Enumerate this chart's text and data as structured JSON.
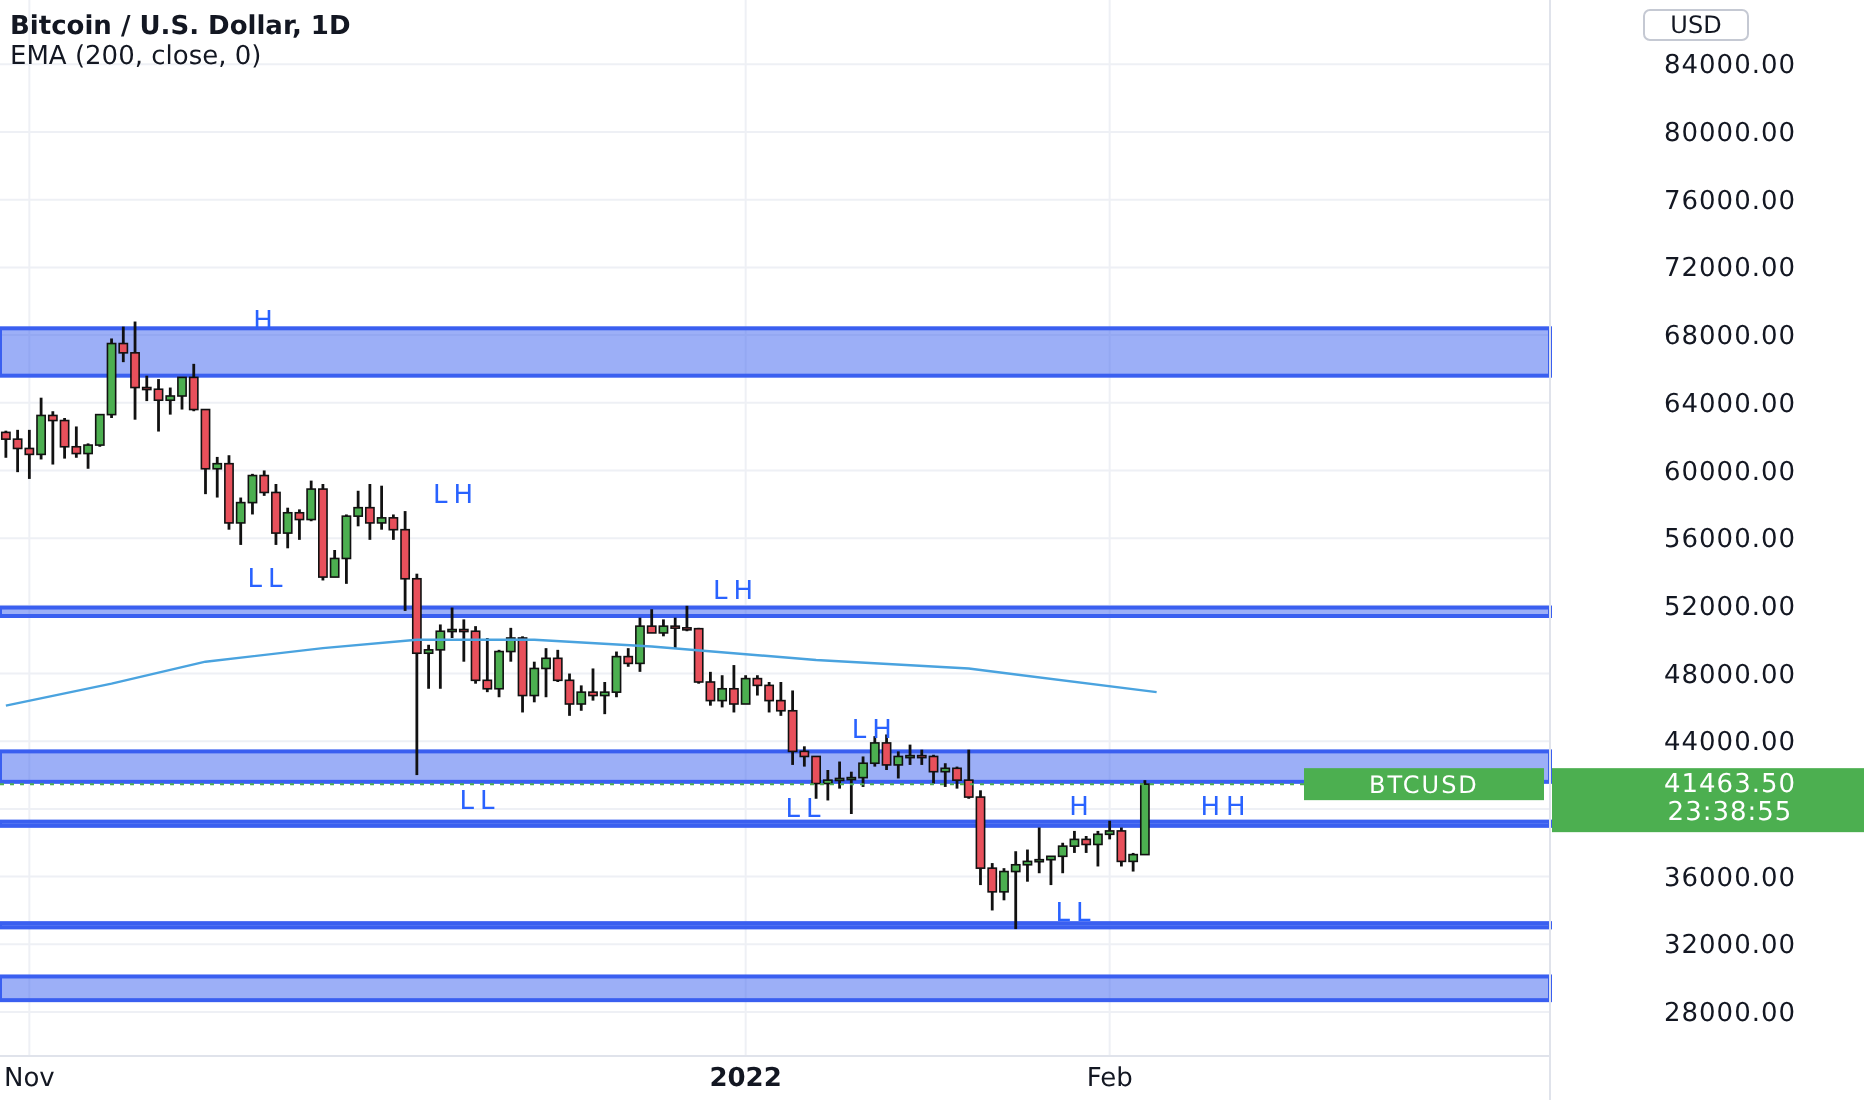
{
  "chart_data": {
    "type": "candlestick",
    "title": "Bitcoin / U.S. Dollar, 1D",
    "subtitle": "EMA (200, close, 0)",
    "xlim": [
      "2021-10-29T12:00",
      "2022-03-10T12:00"
    ],
    "xticks": [
      {
        "value": "2021-11-01",
        "label": "Nov"
      },
      {
        "value": "2022-01-01",
        "label": "2022"
      },
      {
        "value": "2022-02-01",
        "label": "Feb"
      }
    ],
    "ylim": [
      25400,
      87800
    ],
    "yticks": [
      {
        "value": 28000,
        "label": "28000.00"
      },
      {
        "value": 32000,
        "label": "32000.00"
      },
      {
        "value": 36000,
        "label": "36000.00"
      },
      {
        "value": 40000,
        "label": null
      },
      {
        "value": 44000,
        "label": "44000.00"
      },
      {
        "value": 48000,
        "label": "48000.00"
      },
      {
        "value": 52000,
        "label": "52000.00"
      },
      {
        "value": 56000,
        "label": "56000.00"
      },
      {
        "value": 60000,
        "label": "60000.00"
      },
      {
        "value": 64000,
        "label": "64000.00"
      },
      {
        "value": 68000,
        "label": "68000.00"
      },
      {
        "value": 72000,
        "label": "72000.00"
      },
      {
        "value": 76000,
        "label": "76000.00"
      },
      {
        "value": 80000,
        "label": "80000.00"
      },
      {
        "value": 84000,
        "label": "84000.00"
      }
    ],
    "grid": true,
    "series": [
      {
        "color": "#4caf50",
        "x": [
          "2021-11-02",
          "2021-11-06",
          "2021-11-07",
          "2021-11-08",
          "2021-11-13",
          "2021-11-14",
          "2021-11-17",
          "2021-11-19",
          "2021-11-20",
          "2021-11-23",
          "2021-11-25",
          "2021-11-27",
          "2021-11-28",
          "2021-11-29",
          "2021-12-01",
          "2021-12-05",
          "2021-12-06",
          "2021-12-07",
          "2021-12-11",
          "2021-12-12",
          "2021-12-14",
          "2021-12-15",
          "2021-12-18",
          "2021-12-20",
          "2021-12-21",
          "2021-12-23",
          "2021-12-25",
          "2021-12-30",
          "2022-01-01",
          "2022-01-08",
          "2022-01-09",
          "2022-01-10",
          "2022-01-11",
          "2022-01-12",
          "2022-01-14",
          "2022-01-15",
          "2022-01-18",
          "2022-01-23",
          "2022-01-24",
          "2022-01-25",
          "2022-01-26",
          "2022-01-27",
          "2022-01-28",
          "2022-01-29",
          "2022-01-31",
          "2022-02-01",
          "2022-02-03",
          "2022-02-04"
        ],
        "ohlc": [
          [
            60950,
            64300,
            60650,
            63250
          ],
          [
            61000,
            61600,
            60100,
            61500
          ],
          [
            61500,
            63300,
            61400,
            63300
          ],
          [
            63300,
            67800,
            63100,
            67500
          ],
          [
            64150,
            64900,
            63300,
            64400
          ],
          [
            64400,
            65500,
            63600,
            65500
          ],
          [
            60100,
            60800,
            58400,
            60400
          ],
          [
            56900,
            58400,
            55600,
            58100
          ],
          [
            58100,
            59800,
            57400,
            59700
          ],
          [
            56300,
            57800,
            55400,
            57500
          ],
          [
            57100,
            59400,
            57000,
            58900
          ],
          [
            53700,
            55300,
            53700,
            54800
          ],
          [
            54800,
            57400,
            53300,
            57300
          ],
          [
            57300,
            58800,
            56700,
            57800
          ],
          [
            56900,
            59100,
            56500,
            57200
          ],
          [
            49200,
            49700,
            47100,
            49400
          ],
          [
            49400,
            50900,
            47100,
            50500
          ],
          [
            50500,
            51900,
            50100,
            50600
          ],
          [
            47100,
            49400,
            46600,
            49300
          ],
          [
            49300,
            50700,
            48700,
            50100
          ],
          [
            46700,
            48700,
            46300,
            48300
          ],
          [
            48300,
            49500,
            46600,
            48900
          ],
          [
            46200,
            47300,
            45800,
            46900
          ],
          [
            46700,
            47500,
            45600,
            46900
          ],
          [
            46900,
            49300,
            46600,
            49000
          ],
          [
            48600,
            51300,
            48100,
            50800
          ],
          [
            50400,
            51200,
            50200,
            50800
          ],
          [
            46400,
            47900,
            46000,
            47100
          ],
          [
            46200,
            47900,
            46200,
            47700
          ],
          [
            41500,
            42300,
            40500,
            41700
          ],
          [
            41700,
            42800,
            41200,
            41800
          ],
          [
            41800,
            42200,
            39700,
            41850
          ],
          [
            41850,
            43100,
            41300,
            42700
          ],
          [
            42700,
            44300,
            42500,
            43900
          ],
          [
            42600,
            43400,
            41800,
            43100
          ],
          [
            43100,
            43800,
            42600,
            43150
          ],
          [
            42200,
            42700,
            41300,
            42400
          ],
          [
            35100,
            36500,
            34600,
            36300
          ],
          [
            36300,
            37500,
            32900,
            36700
          ],
          [
            36700,
            37600,
            35700,
            36900
          ],
          [
            36900,
            38900,
            36200,
            37000
          ],
          [
            37000,
            37200,
            35500,
            37200
          ],
          [
            37200,
            38000,
            36200,
            37800
          ],
          [
            37800,
            38700,
            37400,
            38200
          ],
          [
            37900,
            38700,
            36600,
            38500
          ],
          [
            38500,
            39300,
            38200,
            38700
          ],
          [
            36900,
            37400,
            36300,
            37300
          ],
          [
            37300,
            41700,
            37300,
            41463.5
          ]
        ]
      },
      {
        "color": "#e8505b",
        "x": [
          "2021-10-30",
          "2021-10-31",
          "2021-11-01",
          "2021-11-03",
          "2021-11-04",
          "2021-11-05",
          "2021-11-09",
          "2021-11-10",
          "2021-11-11",
          "2021-11-12",
          "2021-11-15",
          "2021-11-16",
          "2021-11-18",
          "2021-11-21",
          "2021-11-22",
          "2021-11-24",
          "2021-11-26",
          "2021-11-30",
          "2021-12-02",
          "2021-12-03",
          "2021-12-04",
          "2021-12-08",
          "2021-12-09",
          "2021-12-10",
          "2021-12-13",
          "2021-12-16",
          "2021-12-17",
          "2021-12-19",
          "2021-12-22",
          "2021-12-24",
          "2021-12-26",
          "2021-12-27",
          "2021-12-28",
          "2021-12-29",
          "2021-12-31",
          "2022-01-02",
          "2022-01-03",
          "2022-01-04",
          "2022-01-05",
          "2022-01-06",
          "2022-01-07",
          "2022-01-13",
          "2022-01-16",
          "2022-01-17",
          "2022-01-19",
          "2022-01-20",
          "2022-01-21",
          "2022-01-22",
          "2022-01-30",
          "2022-02-02"
        ],
        "ohlc": [
          [
            62250,
            62350,
            60750,
            61850
          ],
          [
            61850,
            62400,
            59900,
            61300
          ],
          [
            61300,
            62400,
            59500,
            60950
          ],
          [
            63250,
            63500,
            60350,
            62950
          ],
          [
            62950,
            63100,
            60700,
            61400
          ],
          [
            61400,
            62600,
            60750,
            61000
          ],
          [
            67500,
            68500,
            66400,
            66950
          ],
          [
            66950,
            68800,
            63000,
            64900
          ],
          [
            64900,
            65600,
            64100,
            64800
          ],
          [
            64800,
            65400,
            62300,
            64150
          ],
          [
            65500,
            66300,
            63500,
            63600
          ],
          [
            63600,
            63600,
            58600,
            60100
          ],
          [
            60400,
            60900,
            56500,
            56900
          ],
          [
            59700,
            60000,
            58500,
            58700
          ],
          [
            58700,
            59200,
            55600,
            56300
          ],
          [
            57500,
            57700,
            55900,
            57100
          ],
          [
            58900,
            59200,
            53500,
            53700
          ],
          [
            57800,
            59200,
            55900,
            56900
          ],
          [
            57200,
            57400,
            55900,
            56500
          ],
          [
            56500,
            57600,
            51700,
            53600
          ],
          [
            53600,
            53900,
            42000,
            49200
          ],
          [
            50600,
            51200,
            48700,
            50500
          ],
          [
            50500,
            50800,
            47400,
            47600
          ],
          [
            47600,
            50100,
            46900,
            47100
          ],
          [
            50100,
            50200,
            45700,
            46700
          ],
          [
            48900,
            49400,
            47500,
            47600
          ],
          [
            47600,
            48000,
            45500,
            46200
          ],
          [
            46900,
            48300,
            46400,
            46700
          ],
          [
            49000,
            49500,
            48400,
            48600
          ],
          [
            50800,
            51800,
            50400,
            50400
          ],
          [
            50800,
            51300,
            49500,
            50700
          ],
          [
            50700,
            52000,
            50500,
            50650
          ],
          [
            50650,
            50700,
            47400,
            47500
          ],
          [
            47500,
            48100,
            46100,
            46400
          ],
          [
            47100,
            48500,
            45700,
            46200
          ],
          [
            47700,
            47900,
            46700,
            47300
          ],
          [
            47300,
            47500,
            45700,
            46400
          ],
          [
            46400,
            47500,
            45500,
            45800
          ],
          [
            45800,
            47000,
            42600,
            43400
          ],
          [
            43400,
            43700,
            42500,
            43100
          ],
          [
            43100,
            43100,
            40600,
            41500
          ],
          [
            43900,
            44400,
            42300,
            42600
          ],
          [
            43150,
            43500,
            42600,
            43100
          ],
          [
            43100,
            43200,
            41500,
            42200
          ],
          [
            42400,
            42500,
            41200,
            41700
          ],
          [
            41700,
            43500,
            40600,
            40700
          ],
          [
            40700,
            41100,
            35500,
            36500
          ],
          [
            36500,
            36800,
            34000,
            35100
          ],
          [
            38200,
            38400,
            37400,
            37900
          ],
          [
            38700,
            38900,
            36600,
            36900
          ]
        ]
      },
      {
        "type": "line",
        "color": "#4aa3df",
        "x": [
          "2021-10-30",
          "2021-11-08",
          "2021-11-16",
          "2021-11-26",
          "2021-12-04",
          "2021-12-14",
          "2021-12-24",
          "2022-01-07",
          "2022-01-20",
          "2022-02-05"
        ],
        "values": [
          46100,
          47400,
          48700,
          49500,
          50000,
          50000,
          49600,
          48800,
          48300,
          46900
        ]
      }
    ],
    "bands": [
      {
        "axis": "y",
        "from": 65600,
        "to": 68400,
        "color": "#3a5ff0"
      },
      {
        "axis": "y",
        "from": 51400,
        "to": 51900,
        "color": "#3a5ff0"
      },
      {
        "axis": "y",
        "from": 41600,
        "to": 43400,
        "color": "#3a5ff0"
      },
      {
        "axis": "y",
        "from": 39000,
        "to": 39250,
        "color": "#3a5ff0"
      },
      {
        "axis": "y",
        "from": 33000,
        "to": 33250,
        "color": "#3a5ff0"
      },
      {
        "axis": "y",
        "from": 28700,
        "to": 30100,
        "color": "#3a5ff0"
      }
    ],
    "ref_lines": [
      {
        "axis": "y",
        "value": 41463.5,
        "label": "BTCUSD",
        "color": "#4caf50",
        "line_style": "dotted"
      }
    ],
    "annotations": [
      "USD",
      "41463.50",
      "23:38:55",
      "LH",
      "LL",
      "LH",
      "LL",
      "HH",
      "LL",
      "H",
      "LL",
      "H",
      {
        "text": "LH",
        "x": "2022-01-12",
        "y": 44700
      }
    ]
  }
}
